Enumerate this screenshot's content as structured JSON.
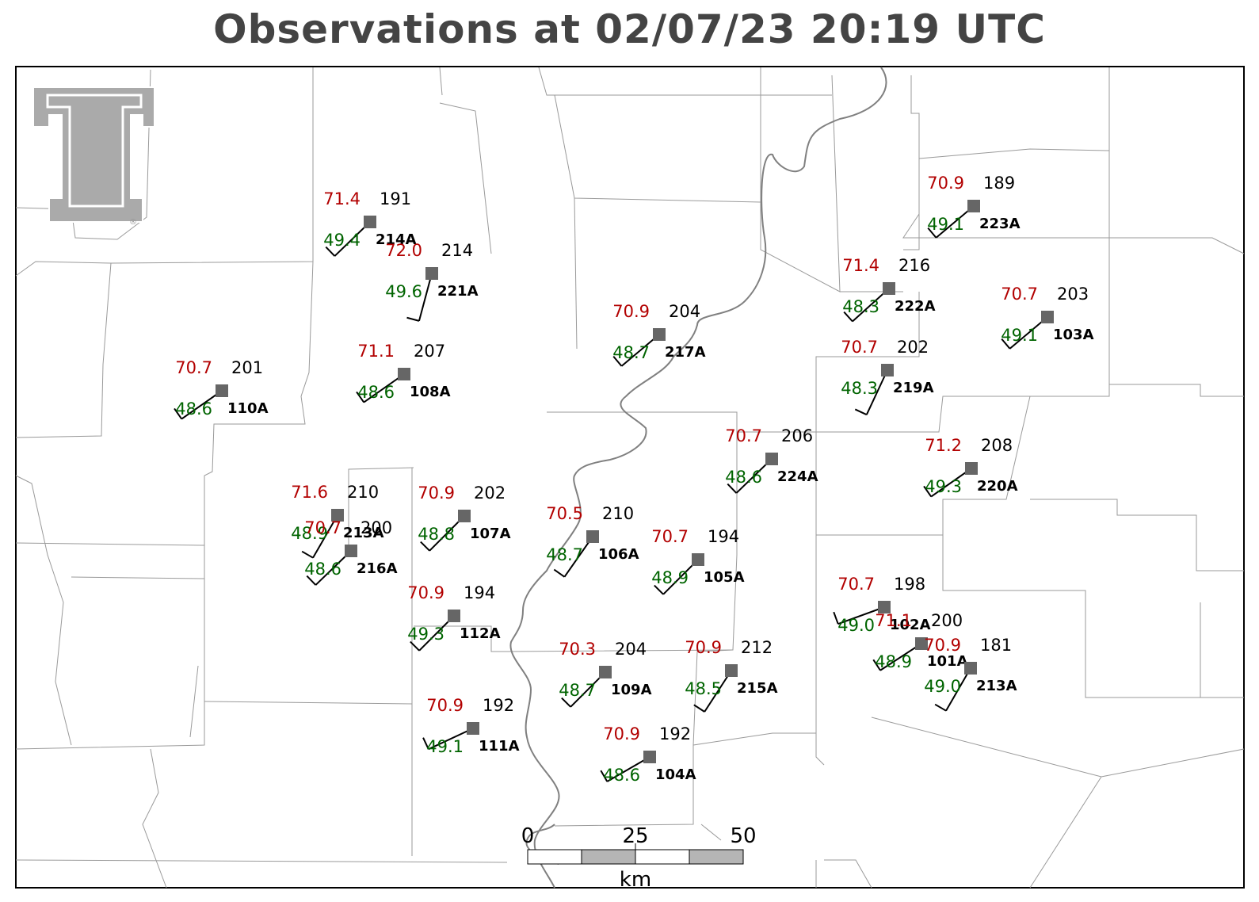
{
  "title": "Observations at 02/07/23 20:19 UTC",
  "colors": {
    "temperature": "#b20000",
    "dewpoint": "#006400",
    "station_marker": "#666666",
    "county_lines": "#999999",
    "river": "#777777",
    "logo": "#aaaaaa"
  },
  "logo": {
    "icon": "texas-tech-double-t-logo",
    "mark": "®"
  },
  "scale_bar": {
    "ticks": [
      "0",
      "25",
      "50"
    ],
    "unit": "km"
  },
  "stations": [
    {
      "id": "214A",
      "temp": "71.4",
      "dew": "49.4",
      "pres": "191",
      "wind_dir": 226,
      "wind_barbs": 1
    },
    {
      "id": "221A",
      "temp": "72.0",
      "dew": "49.6",
      "pres": "214",
      "wind_dir": 195,
      "wind_barbs": 1
    },
    {
      "id": "110A",
      "temp": "70.7",
      "dew": "48.6",
      "pres": "201",
      "wind_dir": 235,
      "wind_barbs": 1
    },
    {
      "id": "108A",
      "temp": "71.1",
      "dew": "48.6",
      "pres": "207",
      "wind_dir": 235,
      "wind_barbs": 1
    },
    {
      "id": "217A",
      "temp": "70.9",
      "dew": "48.7",
      "pres": "204",
      "wind_dir": 230,
      "wind_barbs": 1
    },
    {
      "id": "222A",
      "temp": "71.4",
      "dew": "48.3",
      "pres": "216",
      "wind_dir": 228,
      "wind_barbs": 1
    },
    {
      "id": "219A",
      "temp": "70.7",
      "dew": "48.3",
      "pres": "202",
      "wind_dir": 205,
      "wind_barbs": 1
    },
    {
      "id": "223A",
      "temp": "70.9",
      "dew": "49.1",
      "pres": "189",
      "wind_dir": 230,
      "wind_barbs": 1
    },
    {
      "id": "103A",
      "temp": "70.7",
      "dew": "49.1",
      "pres": "203",
      "wind_dir": 230,
      "wind_barbs": 1
    },
    {
      "id": "224A",
      "temp": "70.7",
      "dew": "48.6",
      "pres": "206",
      "wind_dir": 226,
      "wind_barbs": 1
    },
    {
      "id": "220A",
      "temp": "71.2",
      "dew": "49.3",
      "pres": "208",
      "wind_dir": 235,
      "wind_barbs": 1
    },
    {
      "id": "213A",
      "temp": "71.6",
      "dew": "48.9",
      "pres": "210",
      "wind_dir": 210,
      "wind_barbs": 1
    },
    {
      "id": "216A",
      "temp": "70.7",
      "dew": "48.6",
      "pres": "200",
      "wind_dir": 226,
      "wind_barbs": 1
    },
    {
      "id": "107A",
      "temp": "70.9",
      "dew": "48.8",
      "pres": "202",
      "wind_dir": 225,
      "wind_barbs": 1
    },
    {
      "id": "106A",
      "temp": "70.5",
      "dew": "48.7",
      "pres": "210",
      "wind_dir": 215,
      "wind_barbs": 1
    },
    {
      "id": "105A",
      "temp": "70.7",
      "dew": "48.9",
      "pres": "194",
      "wind_dir": 225,
      "wind_barbs": 1
    },
    {
      "id": "112A",
      "temp": "70.9",
      "dew": "49.3",
      "pres": "194",
      "wind_dir": 225,
      "wind_barbs": 1
    },
    {
      "id": "109A",
      "temp": "70.3",
      "dew": "48.7",
      "pres": "204",
      "wind_dir": 225,
      "wind_barbs": 1
    },
    {
      "id": "215A",
      "temp": "70.9",
      "dew": "48.5",
      "pres": "212",
      "wind_dir": 213,
      "wind_barbs": 1
    },
    {
      "id": "102A",
      "temp": "70.7",
      "dew": "49.0",
      "pres": "198",
      "wind_dir": 250,
      "wind_barbs": 1
    },
    {
      "id": "101A",
      "temp": "71.1",
      "dew": "48.9",
      "pres": "200",
      "wind_dir": 237,
      "wind_barbs": 1
    },
    {
      "id": "213A",
      "temp": "70.9",
      "dew": "49.0",
      "pres": "181",
      "wind_dir": 210,
      "wind_barbs": 1
    },
    {
      "id": "111A",
      "temp": "70.9",
      "dew": "49.1",
      "pres": "192",
      "wind_dir": 245,
      "wind_barbs": 1
    },
    {
      "id": "104A",
      "temp": "70.9",
      "dew": "48.6",
      "pres": "192",
      "wind_dir": 240,
      "wind_barbs": 1
    }
  ]
}
